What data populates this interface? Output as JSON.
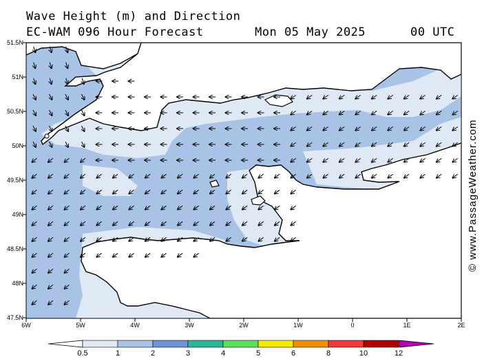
{
  "header": {
    "title_line1": "Wave Height (m) and Direction",
    "title_line2": "EC-WAM 096 Hour Forecast",
    "date": "Mon 05 May 2025",
    "time": "00 UTC"
  },
  "credit": "© www.PassageWeather.com",
  "axes": {
    "lat_labels": [
      "51.5N",
      "51N",
      "50.5N",
      "50N",
      "49.5N",
      "49N",
      "48.5N",
      "48N",
      "47.5N"
    ],
    "lon_labels": [
      "6W",
      "5W",
      "4W",
      "3W",
      "2W",
      "1W",
      "0",
      "1E",
      "2E"
    ]
  },
  "legend": {
    "labels": [
      "0.5",
      "1",
      "2",
      "3",
      "4",
      "5",
      "6",
      "8",
      "10",
      "12"
    ],
    "colors": [
      "#dfe8f5",
      "#a9c3e6",
      "#6d93d6",
      "#2db79a",
      "#5be05b",
      "#f2ea00",
      "#f28e00",
      "#f23a3a",
      "#b00000",
      "#b800b8"
    ]
  },
  "map_colors": {
    "land": "#ffffff",
    "sea_low": "#dfe8f5",
    "sea_mid": "#a9c3e6",
    "coast": "#000000"
  },
  "wave_field": {
    "summary": "Waves 1-2 m in the Western Approaches and central English Channel; 0.5-1 m near coasts; flow mainly from the east to northeast",
    "direction_from": "E-NE"
  }
}
